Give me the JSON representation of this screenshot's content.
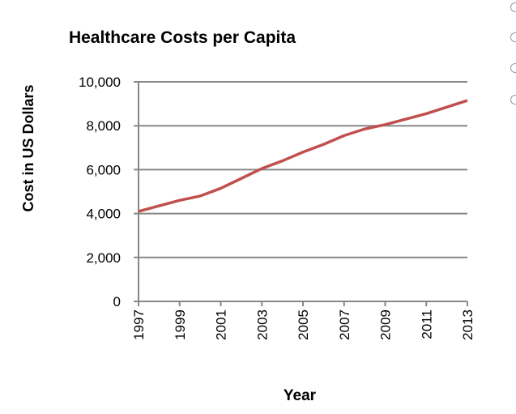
{
  "chart_data": {
    "type": "line",
    "title": "Healthcare Costs per Capita",
    "xlabel": "Year",
    "ylabel": "Cost in US Dollars",
    "ylim": [
      0,
      10000
    ],
    "yticks": [
      "0",
      "2,000",
      "4,000",
      "6,000",
      "8,000",
      "10,000"
    ],
    "xticks": [
      "1997",
      "1999",
      "2001",
      "2003",
      "2005",
      "2007",
      "2009",
      "2011",
      "2013"
    ],
    "grid": true,
    "series": [
      {
        "name": "Cost",
        "color": "#c0504d",
        "x": [
          1997,
          1998,
          1999,
          2000,
          2001,
          2002,
          2003,
          2004,
          2005,
          2006,
          2007,
          2008,
          2009,
          2010,
          2011,
          2012,
          2013
        ],
        "values": [
          4100,
          4350,
          4600,
          4800,
          5150,
          5600,
          6050,
          6400,
          6800,
          7150,
          7550,
          7850,
          8050,
          8300,
          8550,
          8850,
          9150
        ]
      }
    ]
  },
  "radios": [
    {
      "checked": false
    },
    {
      "checked": false
    },
    {
      "checked": false
    },
    {
      "checked": false
    }
  ]
}
